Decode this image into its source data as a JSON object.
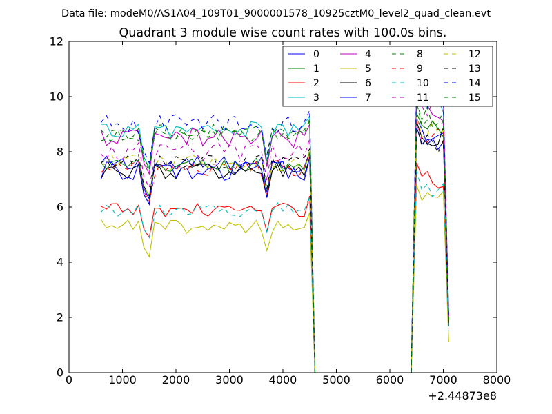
{
  "chart_data": {
    "type": "line",
    "suptitle": "Data file: modeM0/AS1A04_109T01_9000001578_10925cztM0_level2_quad_clean.evt",
    "title": "Quadrant 3 module wise count rates with 100.0s bins.",
    "xlabel": "",
    "ylabel": "",
    "xlim": [
      0,
      8000
    ],
    "ylim": [
      0,
      12
    ],
    "xticks": [
      "0",
      "1000",
      "2000",
      "3000",
      "4000",
      "5000",
      "6000",
      "7000",
      "8000"
    ],
    "yticks": [
      "0",
      "2",
      "4",
      "6",
      "8",
      "10",
      "12"
    ],
    "x_offset_label": "+2.44873e8",
    "grid": false,
    "legend_position": "top-right",
    "legend_columns": 4,
    "segments": {
      "a_x": [
        600,
        700,
        800,
        900,
        1000,
        1100,
        1200,
        1300,
        1400,
        1500,
        1600,
        1700,
        1800,
        1900,
        2000,
        2100,
        2200,
        2300,
        2400,
        2500,
        2600,
        2700,
        2800,
        2900,
        3000,
        3100,
        3200,
        3300,
        3400,
        3500,
        3600,
        3700,
        3800,
        3900,
        4000,
        4100,
        4200,
        4300,
        4400,
        4500
      ],
      "gap_x": [
        4600,
        4700,
        6300,
        6400
      ],
      "b_x": [
        6500,
        6600,
        6700,
        6800,
        6900,
        7000,
        7100
      ]
    },
    "series": [
      {
        "name": "0",
        "color": "#0000ff",
        "style": "solid",
        "base": 7.5,
        "level_b": 8.6,
        "amp": 0.35,
        "dip": 1.2,
        "end": 2.1
      },
      {
        "name": "1",
        "color": "#008000",
        "style": "solid",
        "base": 7.5,
        "level_b": 8.8,
        "amp": 0.3,
        "dip": 1.1,
        "end": 1.9
      },
      {
        "name": "2",
        "color": "#ff0000",
        "style": "solid",
        "base": 5.9,
        "level_b": 7.0,
        "amp": 0.25,
        "dip": 1.0,
        "end": 1.7
      },
      {
        "name": "3",
        "color": "#00bfbf",
        "style": "solid",
        "base": 8.8,
        "level_b": 9.8,
        "amp": 0.3,
        "dip": 1.4,
        "end": 2.2
      },
      {
        "name": "4",
        "color": "#bf00bf",
        "style": "solid",
        "base": 8.5,
        "level_b": 9.6,
        "amp": 0.35,
        "dip": 1.3,
        "end": 2.0
      },
      {
        "name": "5",
        "color": "#bfbf00",
        "style": "solid",
        "base": 5.3,
        "level_b": 6.2,
        "amp": 0.25,
        "dip": 1.1,
        "end": 1.1
      },
      {
        "name": "6",
        "color": "#000000",
        "style": "solid",
        "base": 7.3,
        "level_b": 8.5,
        "amp": 0.3,
        "dip": 1.2,
        "end": 1.7
      },
      {
        "name": "7",
        "color": "#0000ff",
        "style": "solid",
        "base": 7.3,
        "level_b": 8.3,
        "amp": 0.35,
        "dip": 1.2,
        "end": 1.9
      },
      {
        "name": "8",
        "color": "#008000",
        "style": "dashed",
        "base": 8.6,
        "level_b": 9.2,
        "amp": 0.3,
        "dip": 1.3,
        "end": 1.8
      },
      {
        "name": "9",
        "color": "#ff0000",
        "style": "dashed",
        "base": 7.4,
        "level_b": 8.5,
        "amp": 0.3,
        "dip": 1.2,
        "end": 1.8
      },
      {
        "name": "10",
        "color": "#00bfbf",
        "style": "dashed",
        "base": 5.9,
        "level_b": 6.7,
        "amp": 0.25,
        "dip": 1.0,
        "end": 1.5
      },
      {
        "name": "11",
        "color": "#bf00bf",
        "style": "dashed",
        "base": 8.0,
        "level_b": 9.8,
        "amp": 0.35,
        "dip": 1.3,
        "end": 2.0
      },
      {
        "name": "12",
        "color": "#bfbf00",
        "style": "dashed",
        "base": 7.6,
        "level_b": 8.7,
        "amp": 0.3,
        "dip": 1.2,
        "end": 1.8
      },
      {
        "name": "13",
        "color": "#000000",
        "style": "dashed",
        "base": 7.6,
        "level_b": 8.4,
        "amp": 0.3,
        "dip": 1.2,
        "end": 1.7
      },
      {
        "name": "14",
        "color": "#0000ff",
        "style": "dashed",
        "base": 9.0,
        "level_b": 10.0,
        "amp": 0.35,
        "dip": 1.4,
        "end": 2.1
      },
      {
        "name": "15",
        "color": "#008000",
        "style": "dashed",
        "base": 8.7,
        "level_b": 9.2,
        "amp": 0.3,
        "dip": 1.3,
        "end": 1.9
      }
    ]
  }
}
